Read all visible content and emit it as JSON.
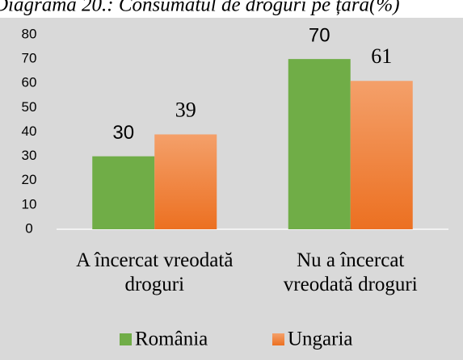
{
  "chart_data": {
    "type": "bar",
    "title": "Diagrama 20.: Consumatul de droguri pe țară(%)",
    "categories": [
      "A încercat vreodată droguri",
      "Nu a încercat vreodată droguri"
    ],
    "series": [
      {
        "name": "România",
        "color": "#70ad47",
        "values": [
          30,
          70
        ]
      },
      {
        "name": "Ungaria",
        "color": "#ed7d31",
        "values": [
          39,
          61
        ]
      }
    ],
    "ylim": [
      0,
      80
    ],
    "yticks": [
      0,
      10,
      20,
      30,
      40,
      50,
      60,
      70,
      80
    ],
    "grid": false,
    "legend": "bottom"
  }
}
